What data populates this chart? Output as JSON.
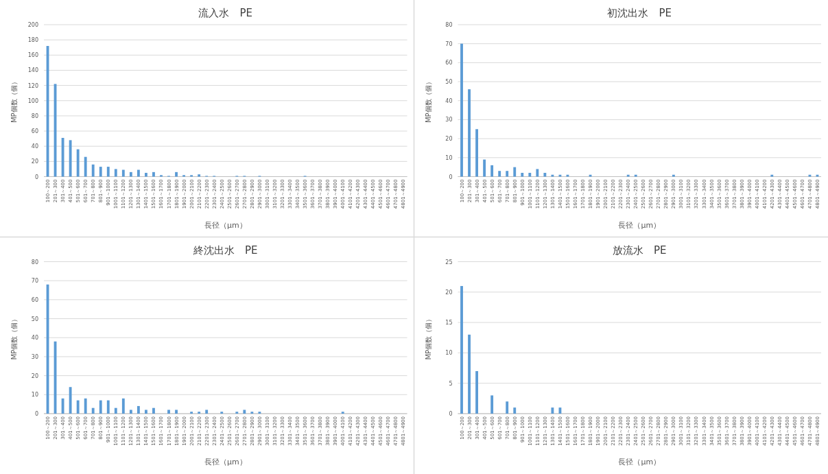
{
  "chart_data": [
    {
      "type": "bar",
      "title": "流入水　PE",
      "xlabel": "長径（μm）",
      "ylabel": "MP個数（個）",
      "color": "#5b9bd5",
      "grid": "y",
      "ylim": [
        0,
        200
      ],
      "yticks": [
        0,
        20,
        40,
        60,
        80,
        100,
        120,
        140,
        160,
        180,
        200
      ],
      "categories": [
        "100～200",
        "201～300",
        "301～400",
        "401～500",
        "501～600",
        "601～700",
        "701～800",
        "801～900",
        "901～1000",
        "1001～1100",
        "1101～1200",
        "1201～1300",
        "1301～1400",
        "1401～1500",
        "1501～1600",
        "1601～1700",
        "1701～1800",
        "1801～1900",
        "1901～2000",
        "2001～2100",
        "2101～2200",
        "2201～2300",
        "2301～2400",
        "2401～2500",
        "2501～2600",
        "2601～2700",
        "2701～2800",
        "2801～2900",
        "2901～3000",
        "3001～3100",
        "3101～3200",
        "3201～3300",
        "3301～3400",
        "3401～3500",
        "3501～3600",
        "3601～3700",
        "3701～3800",
        "3801～3900",
        "3901～4000",
        "4001～4100",
        "4101～4200",
        "4201～4300",
        "4301～4400",
        "4401～4500",
        "4501～4600",
        "4601～4700",
        "4701～4800",
        "4801～4900"
      ],
      "values": [
        172,
        122,
        51,
        48,
        36,
        26,
        16,
        13,
        13,
        10,
        9,
        6,
        9,
        5,
        6,
        2,
        1,
        6,
        2,
        2,
        3,
        1,
        1,
        0,
        0,
        1,
        1,
        0,
        1,
        0,
        0,
        0,
        0,
        0,
        1,
        0,
        0,
        0,
        0,
        0,
        0,
        0,
        0,
        0,
        0,
        0,
        0,
        0
      ]
    },
    {
      "type": "bar",
      "title": "初沈出水　PE",
      "xlabel": "長径（μm）",
      "ylabel": "MP個数（個）",
      "color": "#5b9bd5",
      "grid": "y",
      "ylim": [
        0,
        80
      ],
      "yticks": [
        0,
        10,
        20,
        30,
        40,
        50,
        60,
        70,
        80
      ],
      "categories": [
        "100～200",
        "201～300",
        "301～400",
        "401～500",
        "501～600",
        "601～700",
        "701～800",
        "801～900",
        "901～1000",
        "1001～1100",
        "1101～1200",
        "1201～1300",
        "1301～1400",
        "1401～1500",
        "1501～1600",
        "1601～1700",
        "1701～1800",
        "1801～1900",
        "1901～2000",
        "2001～2100",
        "2101～2200",
        "2201～2300",
        "2301～2400",
        "2401～2500",
        "2501～2600",
        "2601～2700",
        "2701～2800",
        "2801～2900",
        "2901～3000",
        "3001～3100",
        "3101～3200",
        "3201～3300",
        "3301～3400",
        "3401～3500",
        "3501～3600",
        "3601～3700",
        "3701～3800",
        "3801～3900",
        "3901～4000",
        "4001～4100",
        "4101～4200",
        "4201～4300",
        "4301～4400",
        "4401～4500",
        "4501～4600",
        "4601～4700",
        "4701～4800",
        "4801～4900"
      ],
      "values": [
        70,
        46,
        25,
        9,
        6,
        3,
        3,
        5,
        2,
        2,
        4,
        2,
        1,
        1,
        1,
        0,
        0,
        1,
        0,
        0,
        0,
        0,
        1,
        1,
        0,
        0,
        0,
        0,
        1,
        0,
        0,
        0,
        0,
        0,
        0,
        0,
        0,
        0,
        0,
        0,
        0,
        1,
        0,
        0,
        0,
        0,
        1,
        1
      ]
    },
    {
      "type": "bar",
      "title": "終沈出水　PE",
      "xlabel": "長径（μm）",
      "ylabel": "MP個数（個）",
      "color": "#5b9bd5",
      "grid": "y",
      "ylim": [
        0,
        80
      ],
      "yticks": [
        0,
        10,
        20,
        30,
        40,
        50,
        60,
        70,
        80
      ],
      "categories": [
        "100～200",
        "201～300",
        "301～400",
        "401～500",
        "501～600",
        "601～700",
        "701～800",
        "801～900",
        "901～1000",
        "1001～1100",
        "1101～1200",
        "1201～1300",
        "1301～1400",
        "1401～1500",
        "1501～1600",
        "1601～1700",
        "1701～1800",
        "1801～1900",
        "1901～2000",
        "2001～2100",
        "2101～2200",
        "2201～2300",
        "2301～2400",
        "2401～2500",
        "2501～2600",
        "2601～2700",
        "2701～2800",
        "2801～2900",
        "2901～3000",
        "3001～3100",
        "3101～3200",
        "3201～3300",
        "3301～3400",
        "3401～3500",
        "3501～3600",
        "3601～3700",
        "3701～3800",
        "3801～3900",
        "3901～4000",
        "4001～4100",
        "4101～4200",
        "4201～4300",
        "4301～4400",
        "4401～4500",
        "4501～4600",
        "4601～4700",
        "4701～4800",
        "4801～4900"
      ],
      "values": [
        68,
        38,
        8,
        14,
        7,
        8,
        3,
        7,
        7,
        3,
        8,
        2,
        4,
        2,
        3,
        0,
        2,
        2,
        0,
        1,
        1,
        2,
        0,
        1,
        0,
        1,
        2,
        1,
        1,
        0,
        0,
        0,
        0,
        0,
        0,
        0,
        0,
        0,
        0,
        1,
        0,
        0,
        0,
        0,
        0,
        0,
        0,
        0
      ]
    },
    {
      "type": "bar",
      "title": "放流水　PE",
      "xlabel": "長径（μm）",
      "ylabel": "MP個数（個）",
      "color": "#5b9bd5",
      "grid": "y",
      "ylim": [
        0,
        25
      ],
      "yticks": [
        0,
        5,
        10,
        15,
        20,
        25
      ],
      "categories": [
        "100～200",
        "201～300",
        "301～400",
        "401～500",
        "501～600",
        "601～700",
        "701～800",
        "801～900",
        "901～1000",
        "1001～1100",
        "1101～1200",
        "1201～1300",
        "1301～1400",
        "1401～1500",
        "1501～1600",
        "1601～1700",
        "1701～1800",
        "1801～1900",
        "1901～2000",
        "2001～2100",
        "2101～2200",
        "2201～2300",
        "2301～2400",
        "2401～2500",
        "2501～2600",
        "2601～2700",
        "2701～2800",
        "2801～2900",
        "2901～3000",
        "3001～3100",
        "3101～3200",
        "3201～3300",
        "3301～3400",
        "3401～3500",
        "3501～3600",
        "3601～3700",
        "3701～3800",
        "3801～3900",
        "3901～4000",
        "4001～4100",
        "4101～4200",
        "4201～4300",
        "4301～4400",
        "4401～4500",
        "4501～4600",
        "4601～4700",
        "4701～4800",
        "4801～4900"
      ],
      "values": [
        21,
        13,
        7,
        0,
        3,
        0,
        2,
        1,
        0,
        0,
        0,
        0,
        1,
        1,
        0,
        0,
        0,
        0,
        0,
        0,
        0,
        0,
        0,
        0,
        0,
        0,
        0,
        0,
        0,
        0,
        0,
        0,
        0,
        0,
        0,
        0,
        0,
        0,
        0,
        0,
        0,
        0,
        0,
        0,
        0,
        0,
        0,
        0
      ]
    }
  ]
}
